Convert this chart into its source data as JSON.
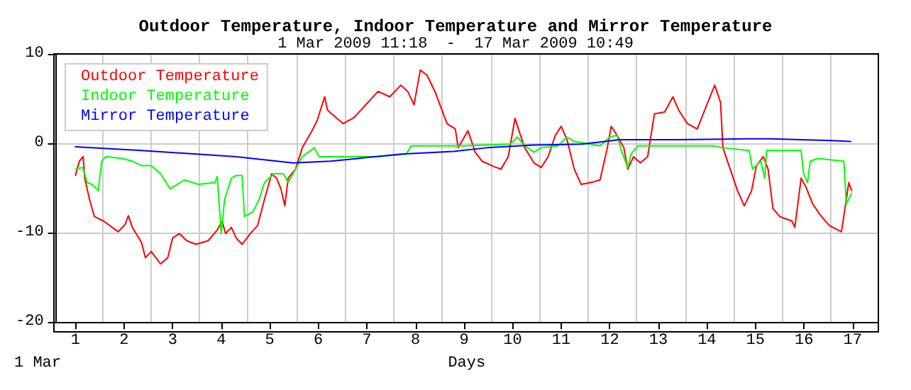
{
  "chart_data": {
    "type": "line",
    "title": "Outdoor Temperature, Indoor Temperature and Mirror Temperature",
    "subtitle": "1 Mar 2009 11:18  -  17 Mar 2009 10:49",
    "xlabel": "Days",
    "annotations": [
      "1 Mar"
    ],
    "xlim": [
      0.58,
      17.53
    ],
    "xticks": [
      1,
      {
        "value": 1.55,
        "label": null
      },
      2,
      {
        "value": 2.55,
        "label": null
      },
      3,
      {
        "value": 3.55,
        "label": null
      },
      4,
      {
        "value": 4.55,
        "label": null
      },
      5,
      {
        "value": 5.55,
        "label": null
      },
      6,
      {
        "value": 6.55,
        "label": null
      },
      7,
      {
        "value": 7.55,
        "label": null
      },
      8,
      {
        "value": 8.55,
        "label": null
      },
      9,
      {
        "value": 9.55,
        "label": null
      },
      10,
      {
        "value": 10.55,
        "label": null
      },
      11,
      {
        "value": 11.55,
        "label": null
      },
      12,
      {
        "value": 12.55,
        "label": null
      },
      13,
      {
        "value": 13.55,
        "label": null
      },
      14,
      {
        "value": 14.55,
        "label": null
      },
      15,
      {
        "value": 15.55,
        "label": null
      },
      16,
      {
        "value": 16.55,
        "label": null
      },
      17
    ],
    "ylim": [
      -20,
      10
    ],
    "yticks": [
      -20,
      -10,
      0,
      10
    ],
    "grid": true,
    "legend": "top left",
    "marker": "none",
    "line_style": "solid",
    "series": [
      {
        "name": "Outdoor Temperature",
        "color": "#ff0000",
        "x": [
          1.0,
          1.08,
          1.16,
          1.19,
          1.29,
          1.39,
          1.58,
          1.88,
          2.02,
          2.09,
          2.17,
          2.36,
          2.44,
          2.56,
          2.75,
          2.9,
          3.0,
          3.14,
          3.29,
          3.48,
          3.73,
          3.92,
          4.02,
          4.09,
          4.21,
          4.31,
          4.43,
          4.6,
          4.75,
          4.89,
          5.04,
          5.14,
          5.23,
          5.31,
          5.38,
          5.53,
          5.67,
          5.87,
          5.98,
          6.13,
          6.19,
          6.51,
          6.74,
          7.23,
          7.47,
          7.7,
          7.84,
          7.97,
          8.1,
          8.24,
          8.4,
          8.65,
          8.82,
          8.88,
          9.08,
          9.23,
          9.37,
          9.57,
          9.76,
          9.91,
          10.05,
          10.13,
          10.25,
          10.44,
          10.59,
          10.73,
          10.88,
          11.0,
          11.12,
          11.27,
          11.41,
          11.61,
          11.8,
          11.95,
          12.03,
          12.15,
          12.29,
          12.37,
          12.49,
          12.63,
          12.78,
          12.92,
          13.13,
          13.3,
          13.42,
          13.6,
          13.8,
          14.16,
          14.28,
          14.33,
          14.48,
          14.63,
          14.77,
          14.92,
          15.02,
          15.16,
          15.26,
          15.36,
          15.5,
          15.75,
          15.81,
          15.94,
          16.04,
          16.18,
          16.33,
          16.52,
          16.77,
          16.87,
          16.92,
          16.98
        ],
        "values": [
          -3.6,
          -2.0,
          -1.5,
          -3.9,
          -6.3,
          -8.2,
          -8.7,
          -9.9,
          -9.1,
          -8.1,
          -9.4,
          -11.1,
          -12.8,
          -12.1,
          -13.5,
          -12.8,
          -10.6,
          -10.1,
          -10.9,
          -11.3,
          -10.9,
          -9.7,
          -8.7,
          -10.1,
          -9.4,
          -10.6,
          -11.3,
          -10.1,
          -9.2,
          -6.3,
          -3.4,
          -3.9,
          -5.1,
          -7.0,
          -3.9,
          -2.9,
          -0.5,
          1.4,
          2.6,
          5.2,
          3.7,
          2.2,
          2.9,
          5.8,
          5.2,
          6.5,
          5.8,
          4.3,
          8.2,
          7.6,
          5.8,
          2.2,
          1.6,
          -0.5,
          1.4,
          -1.0,
          -2.0,
          -2.5,
          -2.9,
          -1.5,
          2.8,
          1.4,
          -0.5,
          -2.2,
          -2.7,
          -1.5,
          0.9,
          1.9,
          0.4,
          -2.9,
          -4.6,
          -4.4,
          -4.1,
          -0.5,
          1.9,
          0.9,
          -0.5,
          -2.9,
          -1.5,
          -2.2,
          -1.5,
          3.3,
          3.5,
          5.2,
          3.7,
          2.2,
          1.6,
          6.5,
          4.6,
          -0.5,
          -2.9,
          -5.3,
          -7.0,
          -5.3,
          -2.5,
          -1.5,
          -2.9,
          -7.3,
          -8.2,
          -8.7,
          -9.4,
          -3.9,
          -4.9,
          -6.8,
          -8.0,
          -9.2,
          -9.9,
          -6.3,
          -4.4,
          -5.3
        ]
      },
      {
        "name": "Indoor Temperature",
        "color": "#00ff00",
        "x": [
          1.0,
          1.15,
          1.24,
          1.34,
          1.47,
          1.54,
          1.63,
          1.97,
          2.17,
          2.36,
          2.56,
          2.75,
          2.95,
          3.24,
          3.53,
          3.87,
          3.92,
          4.0,
          4.07,
          4.21,
          4.31,
          4.43,
          4.48,
          4.65,
          4.78,
          4.89,
          5.09,
          5.28,
          5.38,
          5.53,
          5.67,
          5.92,
          6.01,
          6.26,
          6.74,
          7.23,
          7.81,
          7.91,
          8.2,
          8.79,
          8.98,
          9.95,
          10.1,
          10.25,
          10.44,
          10.59,
          10.93,
          11.12,
          11.27,
          11.8,
          12.0,
          12.15,
          12.24,
          12.37,
          12.44,
          12.58,
          13.36,
          14.14,
          14.33,
          14.87,
          14.94,
          15.11,
          15.19,
          15.23,
          15.94,
          15.99,
          16.07,
          16.13,
          16.28,
          16.82,
          16.87,
          16.98
        ],
        "values": [
          -2.9,
          -2.7,
          -4.4,
          -4.6,
          -5.3,
          -2.0,
          -1.5,
          -1.7,
          -2.0,
          -2.5,
          -2.5,
          -3.4,
          -5.1,
          -4.1,
          -4.6,
          -4.4,
          -3.7,
          -10.1,
          -6.3,
          -3.9,
          -3.6,
          -3.6,
          -8.2,
          -7.7,
          -6.3,
          -4.4,
          -3.4,
          -3.4,
          -4.4,
          -2.9,
          -1.5,
          -0.5,
          -1.5,
          -1.5,
          -1.5,
          -1.5,
          -1.2,
          -0.3,
          -0.3,
          -0.3,
          -0.3,
          -0.1,
          0.7,
          -0.3,
          -1.0,
          -0.5,
          -0.3,
          0.7,
          0.2,
          -0.3,
          0.7,
          0.9,
          -0.8,
          -2.7,
          -1.2,
          -0.3,
          -0.3,
          -0.3,
          -0.5,
          -0.8,
          -2.9,
          -2.0,
          -3.9,
          -0.8,
          -0.8,
          -3.4,
          -4.4,
          -2.0,
          -1.7,
          -2.0,
          -6.8,
          -5.6
        ]
      },
      {
        "name": "Mirror Temperature",
        "color": "#0000ff",
        "x": [
          1.0,
          2.36,
          4.31,
          5.48,
          6.26,
          7.72,
          8.79,
          9.47,
          10.44,
          11.42,
          11.9,
          12.19,
          13.36,
          14.82,
          15.31,
          16.57,
          16.96
        ],
        "values": [
          -0.4,
          -0.8,
          -1.5,
          -2.2,
          -2.0,
          -1.2,
          -0.9,
          -0.5,
          -0.2,
          -0.1,
          0.2,
          0.4,
          0.4,
          0.5,
          0.5,
          0.3,
          0.2
        ]
      }
    ]
  }
}
